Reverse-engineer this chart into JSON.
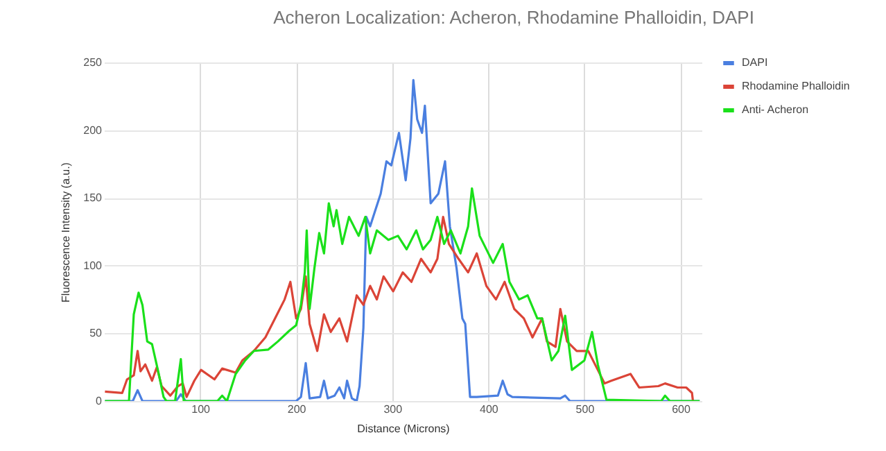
{
  "chart_data": {
    "type": "line",
    "title": "Acheron Localization: Acheron, Rhodamine Phalloidin, DAPI",
    "xlabel": "Distance (Microns)",
    "ylabel": "Fluorescence Intensity (a.u.)",
    "xlim": [
      0,
      622
    ],
    "xticks": [
      100,
      200,
      300,
      400,
      500,
      600
    ],
    "ylim": [
      0,
      250
    ],
    "yticks": [
      0,
      50,
      100,
      150,
      200,
      250
    ],
    "grid": true,
    "legend": "top right",
    "marker": "none",
    "line_style": "solid",
    "series": [
      {
        "name": "DAPI",
        "color": "#4a7fe0",
        "x": [
          1,
          30,
          35,
          40,
          75,
          80,
          85,
          200,
          205,
          210,
          214,
          225,
          229,
          233,
          240,
          245,
          250,
          253,
          258,
          263,
          266,
          270,
          273,
          277,
          282,
          288,
          294,
          299,
          307,
          314,
          319,
          322,
          326,
          331,
          334,
          340,
          348,
          355,
          360,
          367,
          373,
          376,
          381,
          388,
          410,
          415,
          420,
          425,
          475,
          480,
          485,
          620
        ],
        "values": [
          0,
          0,
          8,
          0,
          0,
          5,
          0,
          0,
          3,
          28,
          2,
          3,
          15,
          2,
          4,
          10,
          2,
          15,
          2,
          0,
          11,
          54,
          136,
          129,
          140,
          153,
          177,
          174,
          198,
          163,
          194,
          237,
          208,
          198,
          218,
          146,
          153,
          177,
          129,
          98,
          61,
          57,
          3,
          3,
          4,
          15,
          5,
          3,
          2,
          4,
          0,
          0
        ]
      },
      {
        "name": "Rhodamine Phalloidin",
        "color": "#db4437",
        "x": [
          1,
          19,
          24,
          31,
          35,
          38,
          43,
          50,
          55,
          60,
          69,
          77,
          82,
          86,
          94,
          101,
          115,
          123,
          137,
          144,
          156,
          168,
          178,
          188,
          194,
          200,
          205,
          210,
          214,
          222,
          229,
          236,
          245,
          253,
          263,
          270,
          277,
          284,
          291,
          301,
          311,
          320,
          330,
          340,
          347,
          353,
          359,
          369,
          379,
          388,
          398,
          408,
          417,
          427,
          437,
          446,
          456,
          461,
          470,
          475,
          482,
          492,
          504,
          514,
          521,
          528,
          548,
          557,
          577,
          584,
          597,
          606,
          612,
          613
        ],
        "values": [
          7,
          6,
          16,
          19,
          37,
          22,
          27,
          15,
          25,
          11,
          4,
          11,
          13,
          3,
          15,
          23,
          16,
          24,
          21,
          30,
          37,
          47,
          61,
          75,
          88,
          61,
          68,
          92,
          57,
          37,
          64,
          51,
          61,
          44,
          78,
          71,
          85,
          75,
          92,
          81,
          95,
          88,
          105,
          95,
          105,
          136,
          116,
          105,
          95,
          109,
          85,
          75,
          88,
          68,
          61,
          47,
          61,
          44,
          40,
          68,
          44,
          37,
          37,
          23,
          13,
          15,
          20,
          10,
          11,
          13,
          10,
          10,
          6,
          0
        ]
      },
      {
        "name": "Anti- Acheron",
        "color": "#1ae01a",
        "x": [
          1,
          26,
          31,
          36,
          40,
          45,
          50,
          57,
          62,
          65,
          74,
          80,
          83,
          118,
          123,
          128,
          137,
          147,
          156,
          171,
          181,
          193,
          200,
          205,
          209,
          211,
          214,
          219,
          224,
          229,
          234,
          239,
          242,
          248,
          255,
          265,
          272,
          277,
          284,
          296,
          306,
          315,
          325,
          332,
          340,
          347,
          354,
          361,
          371,
          379,
          383,
          391,
          398,
          405,
          415,
          422,
          432,
          441,
          451,
          456,
          466,
          473,
          480,
          487,
          500,
          508,
          514,
          523,
          580,
          584,
          589,
          620
        ],
        "values": [
          0,
          0,
          64,
          80,
          71,
          44,
          42,
          20,
          3,
          0,
          0,
          31,
          0,
          0,
          4,
          0,
          20,
          30,
          37,
          38,
          44,
          52,
          56,
          71,
          95,
          126,
          68,
          98,
          124,
          109,
          146,
          129,
          141,
          116,
          136,
          122,
          136,
          109,
          126,
          119,
          122,
          112,
          126,
          112,
          119,
          136,
          116,
          126,
          109,
          129,
          157,
          122,
          112,
          102,
          116,
          88,
          75,
          78,
          61,
          61,
          30,
          37,
          63,
          23,
          30,
          51,
          27,
          1,
          0,
          4,
          0,
          0
        ]
      }
    ]
  }
}
